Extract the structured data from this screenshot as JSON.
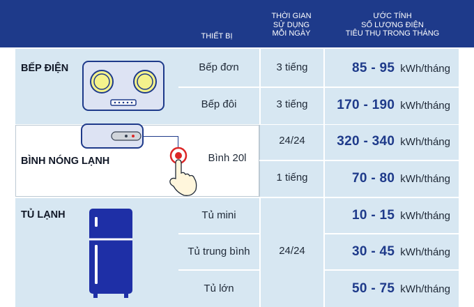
{
  "header": {
    "col_device": "THIẾT BỊ",
    "col_time": [
      "THỜI GIAN",
      "SỬ DỤNG",
      "MỖI NGÀY"
    ],
    "col_estimate": [
      "ƯỚC TÍNH",
      "SỐ LƯỢNG ĐIỆN",
      "TIÊU THỤ TRONG THÁNG"
    ]
  },
  "colors": {
    "header_bg": "#1e3a8a",
    "band_blue": "#d7e7f2",
    "value_blue": "#1e3a8a"
  },
  "sections": {
    "stove": {
      "title": "BẾP ĐIỆN",
      "icon": "electric-stove-icon",
      "rows": [
        {
          "device": "Bếp đơn",
          "time": "3 tiếng",
          "value": "85 - 95",
          "unit": "kWh/tháng"
        },
        {
          "device": "Bếp đôi",
          "time": "3 tiếng",
          "value": "170 - 190",
          "unit": "kWh/tháng"
        }
      ]
    },
    "heater": {
      "title": "BÌNH NÓNG LẠNH",
      "icon": "water-heater-icon",
      "device": "Bình 20l",
      "rows": [
        {
          "time": "24/24",
          "value": "320 - 340",
          "unit": "kWh/tháng"
        },
        {
          "time": "1 tiếng",
          "value": "70 - 80",
          "unit": "kWh/tháng"
        }
      ]
    },
    "fridge": {
      "title": "TỦ LẠNH",
      "icon": "refrigerator-icon",
      "time": "24/24",
      "rows": [
        {
          "device": "Tủ mini",
          "value": "10 - 15",
          "unit": "kWh/tháng"
        },
        {
          "device": "Tủ trung bình",
          "value": "30 - 45",
          "unit": "kWh/tháng"
        },
        {
          "device": "Tủ lớn",
          "value": "50 - 75",
          "unit": "kWh/tháng"
        }
      ]
    }
  }
}
